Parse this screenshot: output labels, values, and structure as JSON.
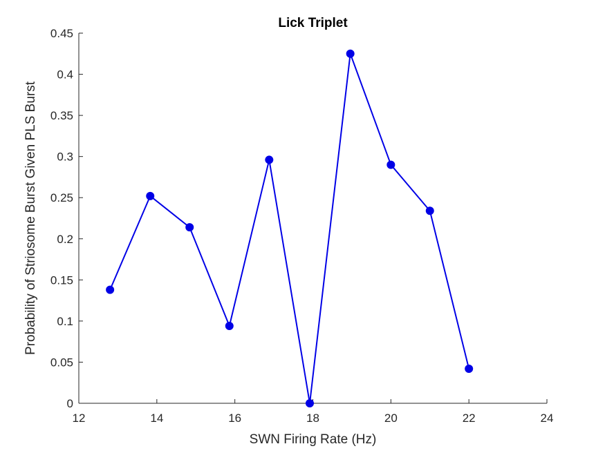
{
  "chart_data": {
    "type": "line",
    "title": "Lick Triplet",
    "xlabel": "SWN Firing Rate (Hz)",
    "ylabel": "Probability of Striosome Burst Given PLS Burst",
    "xlim": [
      12,
      24
    ],
    "ylim": [
      0,
      0.45
    ],
    "xticks": [
      "12",
      "14",
      "16",
      "18",
      "20",
      "22",
      "24"
    ],
    "yticks": [
      "0",
      "0.05",
      "0.1",
      "0.15",
      "0.2",
      "0.25",
      "0.3",
      "0.35",
      "0.4",
      "0.45"
    ],
    "grid": false,
    "series": [
      {
        "color": "#0000e6",
        "marker": "circle",
        "x": [
          12.8,
          13.83,
          14.84,
          15.86,
          16.88,
          17.92,
          18.96,
          20.0,
          21.0,
          22.0
        ],
        "y": [
          0.138,
          0.252,
          0.214,
          0.094,
          0.296,
          0.0,
          0.425,
          0.29,
          0.234,
          0.042
        ]
      }
    ]
  }
}
